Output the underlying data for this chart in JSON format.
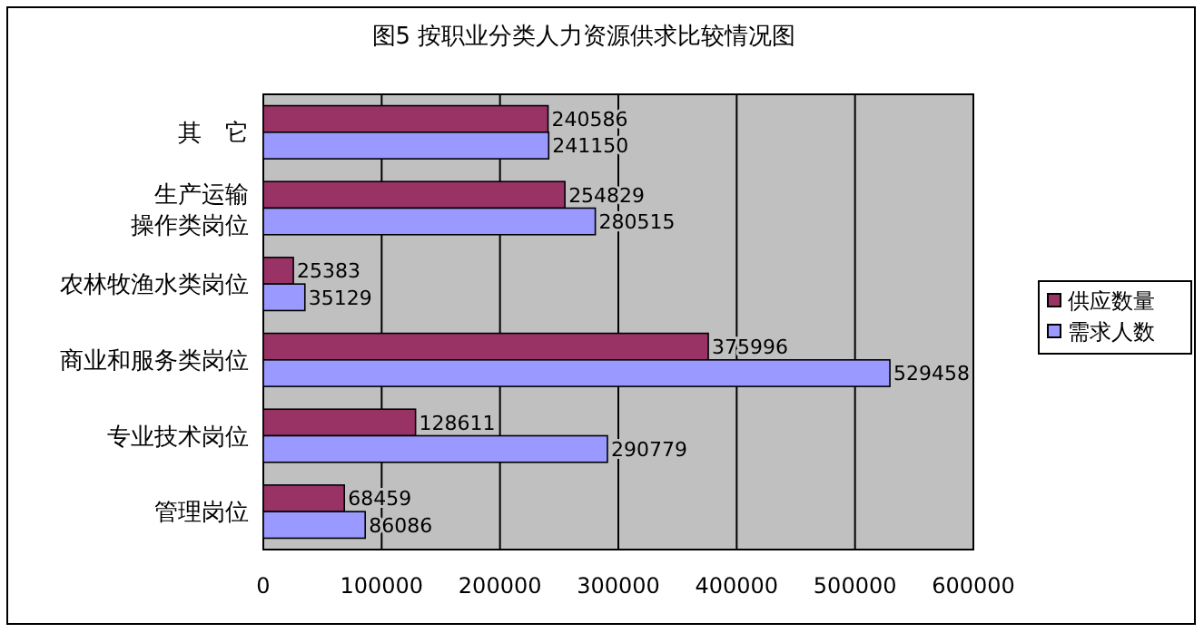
{
  "chart_data": {
    "type": "bar",
    "orientation": "horizontal",
    "title": "图5 按职业分类人力资源供求比较情况图",
    "categories": [
      "其　它",
      "生产运输操作类岗位",
      "农林牧渔水类岗位",
      "商业和服务类岗位",
      "专业技术岗位",
      "管理岗位"
    ],
    "series": [
      {
        "name": "供应数量",
        "color": "#993366",
        "values": [
          240586,
          254829,
          25383,
          375996,
          128611,
          68459
        ]
      },
      {
        "name": "需求人数",
        "color": "#9999ff",
        "values": [
          241150,
          280515,
          35129,
          529458,
          290779,
          86086
        ]
      }
    ],
    "xlim": [
      0,
      600000
    ],
    "xticks": [
      0,
      100000,
      200000,
      300000,
      400000,
      500000,
      600000
    ],
    "grid": "x",
    "legend": "right",
    "data_labels": true
  }
}
